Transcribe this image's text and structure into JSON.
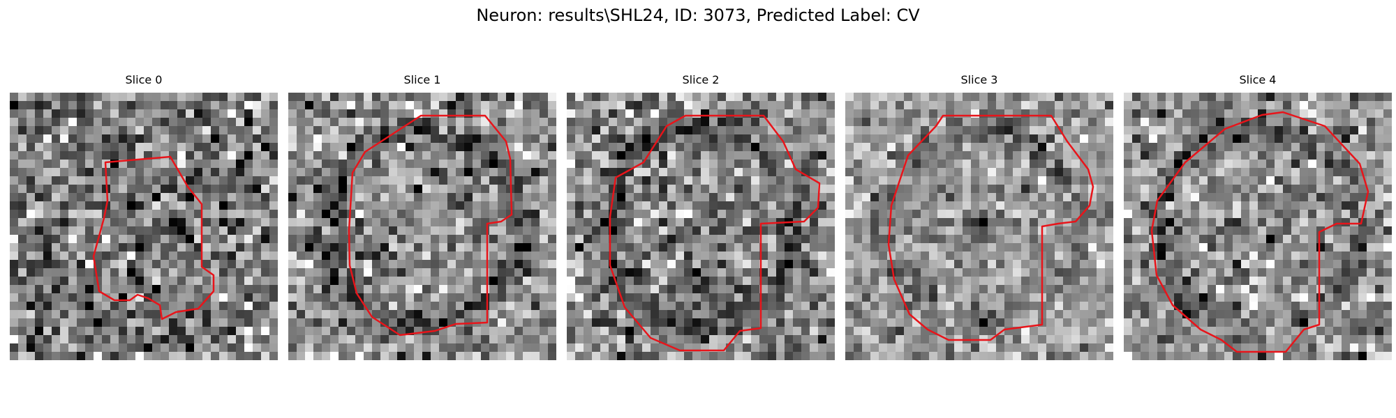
{
  "figure": {
    "title": "Neuron: results\\SHL24, ID: 3073, Predicted Label: CV",
    "contour_color": "#e8141a"
  },
  "panels": [
    {
      "title": "Slice 0",
      "brightness": 0.5,
      "contrast": 0.22,
      "rim_strength": 0.05,
      "center_dark": 0.0,
      "seed": 11
    },
    {
      "title": "Slice 1",
      "brightness": 0.55,
      "contrast": 0.2,
      "rim_strength": 0.22,
      "center_dark": 0.0,
      "seed": 23
    },
    {
      "title": "Slice 2",
      "brightness": 0.55,
      "contrast": 0.2,
      "rim_strength": 0.24,
      "center_dark": 0.0,
      "seed": 37
    },
    {
      "title": "Slice 3",
      "brightness": 0.62,
      "contrast": 0.16,
      "rim_strength": 0.2,
      "center_dark": 0.35,
      "seed": 41
    },
    {
      "title": "Slice 4",
      "brightness": 0.58,
      "contrast": 0.2,
      "rim_strength": 0.2,
      "center_dark": 0.0,
      "seed": 53
    }
  ]
}
